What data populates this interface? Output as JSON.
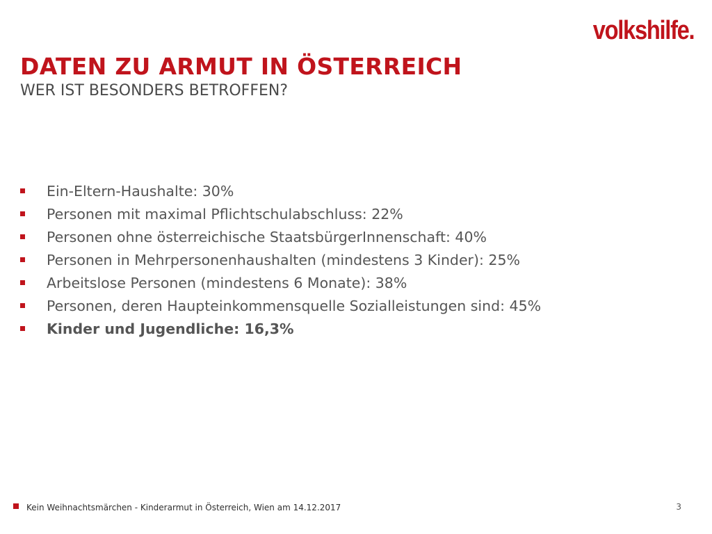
{
  "colors": {
    "brand_red": "#c0141c",
    "body_text": "#555555",
    "footer_text": "#2f2f2f",
    "subtitle_text": "#4a4a4a"
  },
  "header": {
    "logo_text": "volkshilfe.",
    "title": "DATEN ZU ARMUT IN ÖSTERREICH",
    "subtitle": "WER IST BESONDERS BETROFFEN?"
  },
  "bullets": [
    {
      "text": "Ein-Eltern-Haushalte: 30%",
      "bold": false
    },
    {
      "text": "Personen mit maximal Pflichtschulabschluss: 22%",
      "bold": false
    },
    {
      "text": "Personen ohne österreichische StaatsbürgerInnenschaft: 40%",
      "bold": false
    },
    {
      "text": "Personen in Mehrpersonenhaushalten (mindestens 3 Kinder): 25%",
      "bold": false
    },
    {
      "text": "Arbeitslose Personen (mindestens 6 Monate): 38%",
      "bold": false
    },
    {
      "text": "Personen, deren Haupteinkommensquelle Sozialleistungen sind: 45%",
      "bold": false
    },
    {
      "text": "Kinder und Jugendliche: 16,3%",
      "bold": true
    }
  ],
  "footer": {
    "text": "Kein Weihnachtsmärchen - Kinderarmut in Österreich, Wien am 14.12.2017",
    "page_number": "3"
  }
}
